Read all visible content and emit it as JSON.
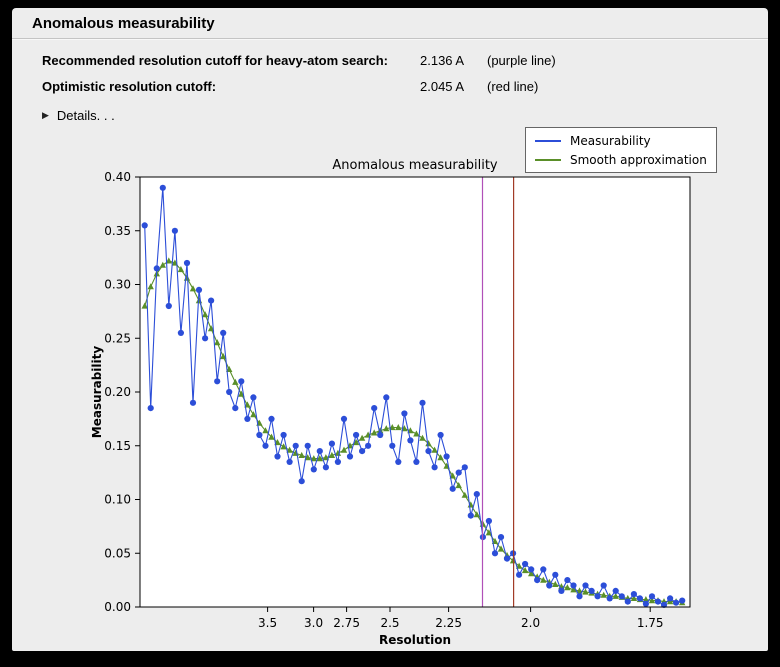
{
  "window": {
    "title": "Anomalous measurability"
  },
  "info": {
    "row1_label": "Recommended resolution cutoff for heavy-atom search:",
    "row1_value": "2.136 A",
    "row1_note": "(purple line)",
    "row2_label": "Optimistic resolution cutoff:",
    "row2_value": "2.045 A",
    "row2_note": "(red line)",
    "details_label": "Details. . ."
  },
  "chart_data": {
    "type": "line",
    "title": "Anomalous measurability",
    "xlabel": "Resolution",
    "ylabel": "Measurability",
    "x_axis": {
      "transform": "inverse_d_squared",
      "inverted_resolution": true,
      "tick_labels": [
        "3.5",
        "3.0",
        "2.75",
        "2.5",
        "2.25",
        "2.0",
        "1.75"
      ],
      "range_invsq": [
        0,
        0.352
      ]
    },
    "y_axis": {
      "tick_labels": [
        "0.00",
        "0.05",
        "0.10",
        "0.15",
        "0.20",
        "0.25",
        "0.30",
        "0.35",
        "0.40"
      ],
      "range": [
        0,
        0.4
      ]
    },
    "points": {
      "x_invsq_start": 0.003,
      "x_invsq_step": 0.003865,
      "count": 90
    },
    "series": [
      {
        "name": "Measurability",
        "color": "#2c4ed8",
        "marker": "circle",
        "values": [
          0.355,
          0.185,
          0.315,
          0.39,
          0.28,
          0.35,
          0.255,
          0.32,
          0.19,
          0.295,
          0.25,
          0.285,
          0.21,
          0.255,
          0.2,
          0.185,
          0.21,
          0.175,
          0.195,
          0.16,
          0.15,
          0.175,
          0.14,
          0.16,
          0.135,
          0.15,
          0.117,
          0.15,
          0.128,
          0.145,
          0.13,
          0.152,
          0.135,
          0.175,
          0.14,
          0.16,
          0.145,
          0.15,
          0.185,
          0.16,
          0.195,
          0.15,
          0.135,
          0.18,
          0.155,
          0.135,
          0.19,
          0.145,
          0.13,
          0.16,
          0.14,
          0.11,
          0.125,
          0.13,
          0.085,
          0.105,
          0.065,
          0.08,
          0.05,
          0.065,
          0.045,
          0.05,
          0.03,
          0.04,
          0.035,
          0.025,
          0.035,
          0.02,
          0.03,
          0.015,
          0.025,
          0.02,
          0.01,
          0.02,
          0.015,
          0.01,
          0.02,
          0.008,
          0.015,
          0.01,
          0.005,
          0.012,
          0.008,
          0.003,
          0.01,
          0.005,
          0.002,
          0.008,
          0.004,
          0.006
        ]
      },
      {
        "name": "Smooth approximation",
        "color": "#5a8f29",
        "marker": "triangle",
        "values": [
          0.28,
          0.298,
          0.31,
          0.318,
          0.322,
          0.32,
          0.314,
          0.306,
          0.296,
          0.285,
          0.272,
          0.259,
          0.246,
          0.233,
          0.221,
          0.209,
          0.198,
          0.188,
          0.179,
          0.171,
          0.164,
          0.158,
          0.153,
          0.149,
          0.146,
          0.143,
          0.141,
          0.139,
          0.138,
          0.138,
          0.139,
          0.141,
          0.143,
          0.146,
          0.15,
          0.153,
          0.157,
          0.16,
          0.162,
          0.164,
          0.166,
          0.167,
          0.167,
          0.166,
          0.164,
          0.161,
          0.157,
          0.152,
          0.146,
          0.139,
          0.131,
          0.122,
          0.113,
          0.104,
          0.095,
          0.086,
          0.077,
          0.069,
          0.061,
          0.054,
          0.048,
          0.043,
          0.038,
          0.034,
          0.031,
          0.028,
          0.025,
          0.023,
          0.021,
          0.019,
          0.018,
          0.016,
          0.015,
          0.014,
          0.013,
          0.012,
          0.011,
          0.01,
          0.01,
          0.009,
          0.008,
          0.008,
          0.007,
          0.007,
          0.006,
          0.006,
          0.005,
          0.005,
          0.005,
          0.004
        ]
      }
    ],
    "vlines": [
      {
        "resolution": 2.136,
        "color": "#b050b8",
        "label": "purple line"
      },
      {
        "resolution": 2.045,
        "color": "#a23b27",
        "label": "red line"
      }
    ],
    "legend_entries": [
      "Measurability",
      "Smooth approximation"
    ]
  }
}
